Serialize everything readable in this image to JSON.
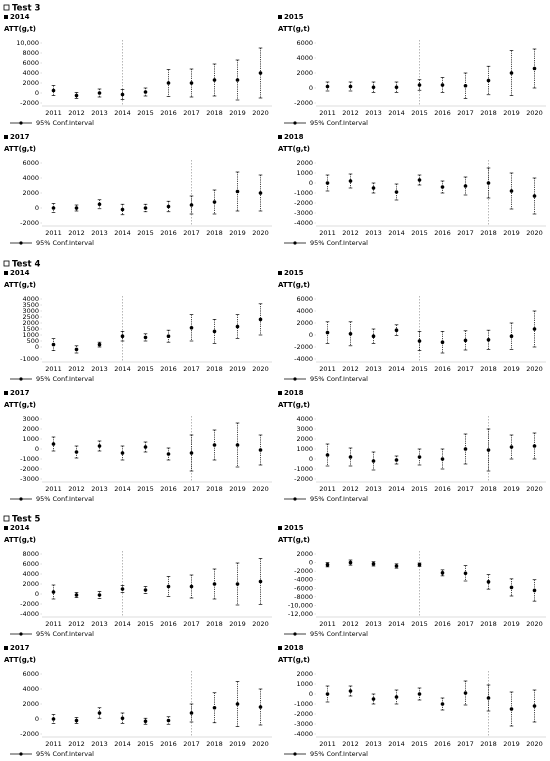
{
  "sections": [
    "Test 3",
    "Test 4",
    "Test 5"
  ],
  "chart_data": [
    {
      "type": "errorbar",
      "title": "2014",
      "ylabel": "ATT(g,t)",
      "legend": "95% Conf.Interval",
      "color": "#000000",
      "vline": "2014",
      "categories": [
        "2011",
        "2012",
        "2013",
        "2014",
        "2015",
        "2016",
        "2017",
        "2018",
        "2019",
        "2020"
      ],
      "values": [
        500,
        -500,
        0,
        -300,
        200,
        2000,
        2000,
        2600,
        2600,
        4000
      ],
      "errors": [
        1000,
        600,
        800,
        1000,
        800,
        2700,
        2800,
        3200,
        4000,
        5000
      ],
      "ylim": [
        -2000,
        10000
      ],
      "yticks": [
        -2000,
        0,
        2000,
        4000,
        6000,
        8000,
        {
          "value": 10000,
          "label": "10,000"
        }
      ]
    },
    {
      "type": "errorbar",
      "title": "2015",
      "ylabel": "ATT(g,t)",
      "legend": "95% Conf.Interval",
      "color": "#000000",
      "vline": "2015",
      "categories": [
        "2011",
        "2012",
        "2013",
        "2014",
        "2015",
        "2016",
        "2017",
        "2018",
        "2019",
        "2020"
      ],
      "values": [
        200,
        200,
        100,
        100,
        400,
        400,
        300,
        1000,
        2000,
        2600
      ],
      "errors": [
        600,
        600,
        700,
        700,
        700,
        1000,
        1700,
        1900,
        3000,
        2600
      ],
      "ylim": [
        -2000,
        6000
      ],
      "yticks": [
        -2000,
        0,
        2000,
        4000,
        6000
      ]
    },
    {
      "type": "errorbar",
      "title": "2017",
      "ylabel": "ATT(g,t)",
      "legend": "95% Conf.Interval",
      "color": "#000000",
      "vline": "2017",
      "categories": [
        "2011",
        "2012",
        "2013",
        "2014",
        "2015",
        "2016",
        "2017",
        "2018",
        "2019",
        "2020"
      ],
      "values": [
        0,
        0,
        500,
        -200,
        0,
        200,
        400,
        800,
        2200,
        2000
      ],
      "errors": [
        600,
        400,
        600,
        700,
        500,
        700,
        1200,
        1600,
        2600,
        2400
      ],
      "ylim": [
        -2000,
        6000
      ],
      "yticks": [
        -2000,
        0,
        2000,
        4000,
        6000
      ]
    },
    {
      "type": "errorbar",
      "title": "2018",
      "ylabel": "ATT(g,t)",
      "legend": "95% Conf.Interval",
      "color": "#000000",
      "vline": "2018",
      "categories": [
        "2011",
        "2012",
        "2013",
        "2014",
        "2015",
        "2016",
        "2017",
        "2018",
        "2019",
        "2020"
      ],
      "values": [
        0,
        200,
        -500,
        -900,
        300,
        -400,
        -300,
        0,
        -800,
        -1300
      ],
      "errors": [
        800,
        700,
        500,
        800,
        500,
        600,
        900,
        1500,
        1800,
        1800
      ],
      "ylim": [
        -4000,
        2000
      ],
      "yticks": [
        -4000,
        -3000,
        -2000,
        -1000,
        0,
        1000,
        2000
      ]
    },
    {
      "type": "errorbar",
      "title": "2014",
      "ylabel": "ATT(g,t)",
      "legend": "95% Conf.Interval",
      "color": "#000000",
      "vline": "2014",
      "categories": [
        "2011",
        "2012",
        "2013",
        "2014",
        "2015",
        "2016",
        "2017",
        "2018",
        "2019",
        "2020"
      ],
      "values": [
        200,
        -200,
        200,
        900,
        800,
        900,
        1600,
        1300,
        1700,
        2300
      ],
      "errors": [
        500,
        300,
        200,
        400,
        300,
        500,
        1100,
        1000,
        1000,
        1300
      ],
      "ylim": [
        -1000,
        4000
      ],
      "yticks": [
        -1000,
        0,
        500,
        1000,
        1500,
        2000,
        2500,
        3000,
        3500,
        4000
      ]
    },
    {
      "type": "errorbar",
      "title": "2015",
      "ylabel": "ATT(g,t)",
      "legend": "95% Conf.Interval",
      "color": "#000000",
      "vline": "2015",
      "categories": [
        "2011",
        "2012",
        "2013",
        "2014",
        "2015",
        "2016",
        "2017",
        "2018",
        "2019",
        "2020"
      ],
      "values": [
        400,
        200,
        -200,
        800,
        -1000,
        -1200,
        -900,
        -800,
        -200,
        1000
      ],
      "errors": [
        1800,
        2000,
        1200,
        900,
        1600,
        1800,
        1600,
        1600,
        2200,
        3000
      ],
      "ylim": [
        -4000,
        6000
      ],
      "yticks": [
        -4000,
        -2000,
        0,
        2000,
        4000,
        6000
      ]
    },
    {
      "type": "errorbar",
      "title": "2017",
      "ylabel": "ATT(g,t)",
      "legend": "95% Conf.Interval",
      "color": "#000000",
      "vline": "2017",
      "categories": [
        "2011",
        "2012",
        "2013",
        "2014",
        "2015",
        "2016",
        "2017",
        "2018",
        "2019",
        "2020"
      ],
      "values": [
        500,
        -300,
        300,
        -400,
        200,
        -500,
        -400,
        400,
        400,
        -100
      ],
      "errors": [
        700,
        600,
        500,
        700,
        500,
        600,
        1800,
        1500,
        2200,
        1500
      ],
      "ylim": [
        -3000,
        3000
      ],
      "yticks": [
        -3000,
        -2000,
        -1000,
        0,
        1000,
        2000,
        3000
      ]
    },
    {
      "type": "errorbar",
      "title": "2018",
      "ylabel": "ATT(g,t)",
      "legend": "95% Conf.Interval",
      "color": "#000000",
      "vline": "2018",
      "categories": [
        "2011",
        "2012",
        "2013",
        "2014",
        "2015",
        "2016",
        "2017",
        "2018",
        "2019",
        "2020"
      ],
      "values": [
        400,
        200,
        -200,
        -100,
        200,
        0,
        1000,
        900,
        1200,
        1300
      ],
      "errors": [
        1100,
        900,
        900,
        400,
        800,
        1000,
        1500,
        2100,
        1200,
        1300
      ],
      "ylim": [
        -2000,
        4000
      ],
      "yticks": [
        -2000,
        -1000,
        0,
        1000,
        2000,
        3000,
        4000
      ]
    },
    {
      "type": "errorbar",
      "title": "2014",
      "ylabel": "ATT(g,t)",
      "legend": "95% Conf.Interval",
      "color": "#000000",
      "vline": "2014",
      "categories": [
        "2011",
        "2012",
        "2013",
        "2014",
        "2015",
        "2016",
        "2017",
        "2018",
        "2019",
        "2020"
      ],
      "values": [
        400,
        -200,
        -200,
        1000,
        800,
        1500,
        1500,
        2000,
        2000,
        2500
      ],
      "errors": [
        1400,
        500,
        700,
        700,
        700,
        2000,
        2300,
        3000,
        4200,
        4600
      ],
      "ylim": [
        -4000,
        8000
      ],
      "yticks": [
        -4000,
        -2000,
        0,
        2000,
        4000,
        6000,
        8000
      ]
    },
    {
      "type": "errorbar",
      "title": "2015",
      "ylabel": "ATT(g,t)",
      "legend": "95% Conf.Interval",
      "color": "#000000",
      "vline": "2015",
      "categories": [
        "2011",
        "2012",
        "2013",
        "2014",
        "2015",
        "2016",
        "2017",
        "2018",
        "2019",
        "2020"
      ],
      "values": [
        -500,
        0,
        -300,
        -800,
        -500,
        -2400,
        -2500,
        -4500,
        -5800,
        -6500
      ],
      "errors": [
        500,
        600,
        500,
        500,
        400,
        700,
        1800,
        1700,
        2000,
        2500
      ],
      "ylim": [
        -12000,
        2000
      ],
      "yticks": [
        {
          "value": -12000,
          "label": "-12,000"
        },
        {
          "value": -10000,
          "label": "-10,000"
        },
        -8000,
        -6000,
        -4000,
        -2000,
        0,
        2000
      ]
    },
    {
      "type": "errorbar",
      "title": "2017",
      "ylabel": "ATT(g,t)",
      "legend": "95% Conf.Interval",
      "color": "#000000",
      "vline": "2017",
      "categories": [
        "2011",
        "2012",
        "2013",
        "2014",
        "2015",
        "2016",
        "2017",
        "2018",
        "2019",
        "2020"
      ],
      "values": [
        0,
        -200,
        800,
        100,
        -300,
        -200,
        800,
        1500,
        2000,
        1600
      ],
      "errors": [
        600,
        400,
        700,
        700,
        400,
        500,
        1200,
        2000,
        3000,
        2400
      ],
      "ylim": [
        -2000,
        6000
      ],
      "yticks": [
        -2000,
        0,
        2000,
        4000,
        6000
      ]
    },
    {
      "type": "errorbar",
      "title": "2018",
      "ylabel": "ATT(g,t)",
      "legend": "95% Conf.Interval",
      "color": "#000000",
      "vline": "2018",
      "categories": [
        "2011",
        "2012",
        "2013",
        "2014",
        "2015",
        "2016",
        "2017",
        "2018",
        "2019",
        "2020"
      ],
      "values": [
        0,
        300,
        -500,
        -300,
        0,
        -1000,
        100,
        -400,
        -1500,
        -1200
      ],
      "errors": [
        800,
        500,
        500,
        700,
        600,
        600,
        1200,
        1300,
        1700,
        1600
      ],
      "ylim": [
        -4000,
        2000
      ],
      "yticks": [
        -4000,
        -3000,
        -2000,
        -1000,
        0,
        1000,
        2000
      ]
    }
  ]
}
